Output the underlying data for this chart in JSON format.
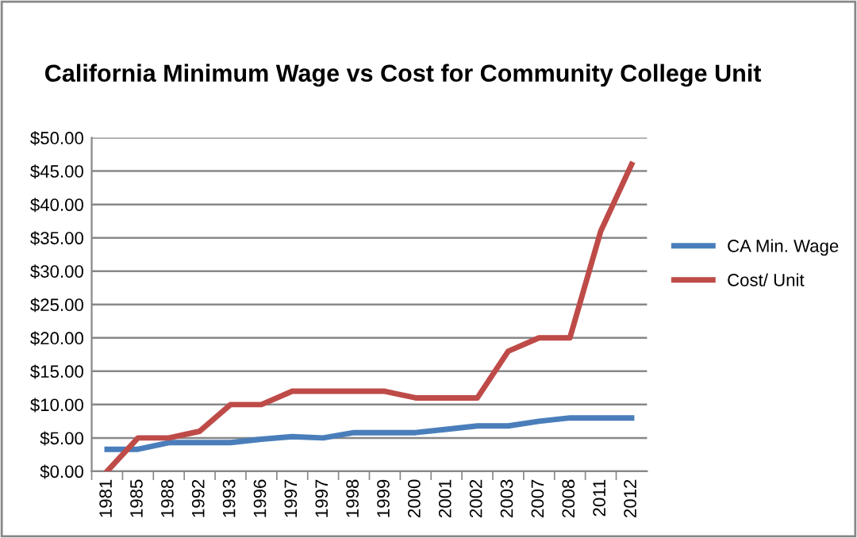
{
  "chart_data": {
    "type": "line",
    "title": "California Minimum Wage vs Cost for Community College Unit",
    "categories": [
      "1981",
      "1985",
      "1988",
      "1992",
      "1993",
      "1996",
      "1997",
      "1997",
      "1998",
      "1999",
      "2000",
      "2001",
      "2002",
      "2003",
      "2007",
      "2008",
      "2011",
      "2012"
    ],
    "series": [
      {
        "name": "CA Min. Wage",
        "color": "#4a7ebb",
        "values": [
          3.3,
          3.3,
          4.3,
          4.3,
          4.3,
          4.8,
          5.2,
          5.0,
          5.8,
          5.8,
          5.8,
          6.3,
          6.8,
          6.8,
          7.5,
          8.0,
          8.0,
          8.0
        ]
      },
      {
        "name": "Cost/ Unit",
        "color": "#be4b48",
        "values": [
          0,
          5,
          5,
          6,
          10,
          10,
          12,
          12,
          12,
          12,
          11,
          11,
          11,
          18,
          20,
          20,
          36,
          46
        ]
      }
    ],
    "ylim": [
      0,
      50
    ],
    "yticks": [
      {
        "value": 0,
        "label": "$0.00"
      },
      {
        "value": 5,
        "label": "$5.00"
      },
      {
        "value": 10,
        "label": "$10.00"
      },
      {
        "value": 15,
        "label": "$15.00"
      },
      {
        "value": 20,
        "label": "$20.00"
      },
      {
        "value": 25,
        "label": "$25.00"
      },
      {
        "value": 30,
        "label": "$30.00"
      },
      {
        "value": 35,
        "label": "$35.00"
      },
      {
        "value": 40,
        "label": "$40.00"
      },
      {
        "value": 45,
        "label": "$45.00"
      },
      {
        "value": 50,
        "label": "$50.00"
      }
    ],
    "grid": "y",
    "legend": "right",
    "marker": "none",
    "line_style": "solid"
  }
}
